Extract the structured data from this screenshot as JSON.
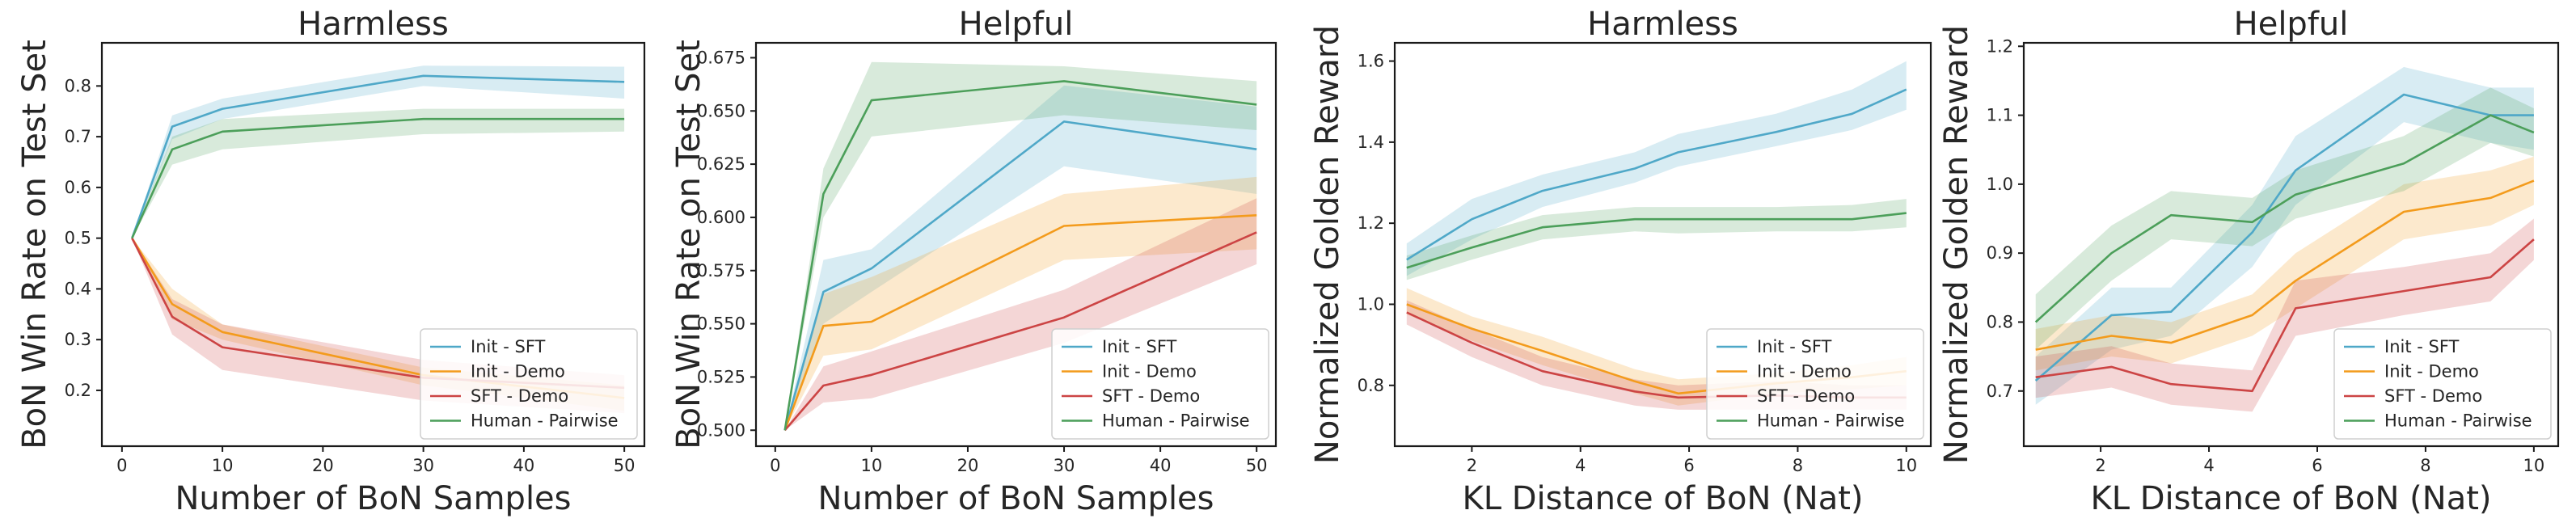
{
  "chart_data": [
    {
      "type": "line",
      "title": "Harmless",
      "xlabel": "Number of BoN Samples",
      "ylabel": "BoN Win Rate on Test Set",
      "xlim": [
        -2,
        52
      ],
      "ylim": [
        0.09,
        0.885
      ],
      "xticks": [
        0,
        10,
        20,
        30,
        40,
        50
      ],
      "yticks": [
        0.2,
        0.3,
        0.4,
        0.5,
        0.6,
        0.7,
        0.8
      ],
      "series": [
        {
          "name": "Init - SFT",
          "color": "#4fa8c8",
          "x": [
            1,
            5,
            10,
            30,
            50
          ],
          "y": [
            0.5,
            0.72,
            0.755,
            0.82,
            0.808
          ],
          "lower": [
            0.5,
            0.695,
            0.735,
            0.8,
            0.775
          ],
          "upper": [
            0.5,
            0.742,
            0.775,
            0.84,
            0.838
          ]
        },
        {
          "name": "Init - Demo",
          "color": "#f39b1c",
          "x": [
            1,
            5,
            10,
            30,
            50
          ],
          "y": [
            0.5,
            0.37,
            0.315,
            0.23,
            0.185
          ],
          "lower": [
            0.5,
            0.34,
            0.3,
            0.21,
            0.16
          ],
          "upper": [
            0.5,
            0.4,
            0.33,
            0.245,
            0.21
          ]
        },
        {
          "name": "SFT - Demo",
          "color": "#cc4444",
          "x": [
            1,
            5,
            10,
            30,
            50
          ],
          "y": [
            0.5,
            0.345,
            0.285,
            0.225,
            0.205
          ],
          "lower": [
            0.5,
            0.31,
            0.24,
            0.18,
            0.155
          ],
          "upper": [
            0.5,
            0.38,
            0.33,
            0.26,
            0.23
          ]
        },
        {
          "name": "Human - Pairwise",
          "color": "#4c9f5a",
          "x": [
            1,
            5,
            10,
            30,
            50
          ],
          "y": [
            0.5,
            0.675,
            0.71,
            0.735,
            0.735
          ],
          "lower": [
            0.5,
            0.645,
            0.675,
            0.705,
            0.71
          ],
          "upper": [
            0.5,
            0.7,
            0.735,
            0.755,
            0.755
          ]
        }
      ],
      "legend": "lower-right"
    },
    {
      "type": "line",
      "title": "Helpful",
      "xlabel": "Number of BoN Samples",
      "ylabel": "BoN Win Rate on Test Set",
      "xlim": [
        -2,
        52
      ],
      "ylim": [
        0.4925,
        0.682
      ],
      "xticks": [
        0,
        10,
        20,
        30,
        40,
        50
      ],
      "yticks": [
        0.5,
        0.525,
        0.55,
        0.575,
        0.6,
        0.625,
        0.65,
        0.675
      ],
      "series": [
        {
          "name": "Init - SFT",
          "color": "#4fa8c8",
          "x": [
            1,
            5,
            10,
            30,
            50
          ],
          "y": [
            0.5,
            0.565,
            0.576,
            0.645,
            0.632
          ],
          "lower": [
            0.5,
            0.55,
            0.565,
            0.624,
            0.611
          ],
          "upper": [
            0.5,
            0.58,
            0.585,
            0.662,
            0.652
          ]
        },
        {
          "name": "Init - Demo",
          "color": "#f39b1c",
          "x": [
            1,
            5,
            10,
            30,
            50
          ],
          "y": [
            0.5,
            0.549,
            0.551,
            0.596,
            0.601
          ],
          "lower": [
            0.5,
            0.535,
            0.538,
            0.58,
            0.585
          ],
          "upper": [
            0.5,
            0.564,
            0.572,
            0.611,
            0.619
          ]
        },
        {
          "name": "SFT - Demo",
          "color": "#cc4444",
          "x": [
            1,
            5,
            10,
            30,
            50
          ],
          "y": [
            0.5,
            0.521,
            0.526,
            0.553,
            0.593
          ],
          "lower": [
            0.5,
            0.513,
            0.515,
            0.541,
            0.578
          ],
          "upper": [
            0.5,
            0.53,
            0.537,
            0.566,
            0.609
          ]
        },
        {
          "name": "Human - Pairwise",
          "color": "#4c9f5a",
          "x": [
            1,
            5,
            10,
            30,
            50
          ],
          "y": [
            0.5,
            0.611,
            0.655,
            0.664,
            0.653
          ],
          "lower": [
            0.5,
            0.6,
            0.638,
            0.648,
            0.641
          ],
          "upper": [
            0.5,
            0.623,
            0.673,
            0.671,
            0.664
          ]
        }
      ],
      "legend": "lower-right"
    },
    {
      "type": "line",
      "title": "Harmless",
      "xlabel": "KL Distance of BoN (Nat)",
      "ylabel": "Normalized Golden Reward",
      "xlim": [
        0.58,
        10.45
      ],
      "ylim": [
        0.65,
        1.645
      ],
      "xticks": [
        2,
        4,
        6,
        8,
        10
      ],
      "yticks": [
        0.8,
        1.0,
        1.2,
        1.4,
        1.6
      ],
      "series": [
        {
          "name": "Init - SFT",
          "color": "#4fa8c8",
          "x": [
            0.8,
            2.0,
            3.3,
            5.0,
            5.8,
            7.6,
            9.0,
            10.0
          ],
          "y": [
            1.11,
            1.21,
            1.28,
            1.335,
            1.375,
            1.425,
            1.47,
            1.53
          ],
          "lower": [
            1.07,
            1.16,
            1.24,
            1.3,
            1.34,
            1.39,
            1.43,
            1.48
          ],
          "upper": [
            1.15,
            1.26,
            1.32,
            1.375,
            1.42,
            1.47,
            1.53,
            1.6
          ]
        },
        {
          "name": "Init - Demo",
          "color": "#f39b1c",
          "x": [
            0.8,
            2.0,
            3.3,
            5.0,
            5.8,
            7.6,
            9.0,
            10.0
          ],
          "y": [
            1.0,
            0.94,
            0.885,
            0.81,
            0.78,
            0.805,
            0.82,
            0.835
          ],
          "lower": [
            0.975,
            0.91,
            0.85,
            0.78,
            0.75,
            0.78,
            0.79,
            0.8
          ],
          "upper": [
            1.04,
            0.97,
            0.92,
            0.84,
            0.815,
            0.83,
            0.85,
            0.87
          ]
        },
        {
          "name": "SFT - Demo",
          "color": "#cc4444",
          "x": [
            0.8,
            2.0,
            3.3,
            5.0,
            5.8,
            7.6,
            9.0,
            10.0
          ],
          "y": [
            0.98,
            0.905,
            0.835,
            0.785,
            0.77,
            0.775,
            0.77,
            0.77
          ],
          "lower": [
            0.95,
            0.87,
            0.8,
            0.75,
            0.74,
            0.74,
            0.74,
            0.74
          ],
          "upper": [
            1.01,
            0.94,
            0.87,
            0.815,
            0.8,
            0.81,
            0.8,
            0.8
          ]
        },
        {
          "name": "Human - Pairwise",
          "color": "#4c9f5a",
          "x": [
            0.8,
            2.0,
            3.3,
            5.0,
            5.8,
            7.6,
            9.0,
            10.0
          ],
          "y": [
            1.09,
            1.14,
            1.19,
            1.21,
            1.21,
            1.21,
            1.21,
            1.225
          ],
          "lower": [
            1.06,
            1.11,
            1.16,
            1.18,
            1.175,
            1.18,
            1.18,
            1.19
          ],
          "upper": [
            1.12,
            1.17,
            1.22,
            1.24,
            1.24,
            1.24,
            1.245,
            1.26
          ]
        }
      ],
      "legend": "lower-right"
    },
    {
      "type": "line",
      "title": "Helpful",
      "xlabel": "KL Distance of BoN (Nat)",
      "ylabel": "Normalized Golden Reward",
      "xlim": [
        0.58,
        10.45
      ],
      "ylim": [
        0.62,
        1.205
      ],
      "xticks": [
        2,
        4,
        6,
        8,
        10
      ],
      "yticks": [
        0.7,
        0.8,
        0.9,
        1.0,
        1.1,
        1.2
      ],
      "series": [
        {
          "name": "Init - SFT",
          "color": "#4fa8c8",
          "x": [
            0.8,
            2.2,
            3.3,
            4.8,
            5.6,
            7.6,
            9.2,
            10.0
          ],
          "y": [
            0.715,
            0.81,
            0.815,
            0.93,
            1.02,
            1.13,
            1.1,
            1.1
          ],
          "lower": [
            0.68,
            0.76,
            0.78,
            0.88,
            0.97,
            1.09,
            1.06,
            1.05
          ],
          "upper": [
            0.75,
            0.85,
            0.85,
            0.97,
            1.07,
            1.17,
            1.14,
            1.14
          ]
        },
        {
          "name": "Init - Demo",
          "color": "#f39b1c",
          "x": [
            0.8,
            2.2,
            3.3,
            4.8,
            5.6,
            7.6,
            9.2,
            10.0
          ],
          "y": [
            0.76,
            0.78,
            0.77,
            0.81,
            0.86,
            0.96,
            0.98,
            1.005
          ],
          "lower": [
            0.73,
            0.75,
            0.74,
            0.78,
            0.82,
            0.92,
            0.94,
            0.97
          ],
          "upper": [
            0.79,
            0.81,
            0.8,
            0.84,
            0.9,
            1.0,
            1.02,
            1.04
          ]
        },
        {
          "name": "SFT - Demo",
          "color": "#cc4444",
          "x": [
            0.8,
            2.2,
            3.3,
            4.8,
            5.6,
            7.6,
            9.2,
            10.0
          ],
          "y": [
            0.72,
            0.735,
            0.71,
            0.7,
            0.82,
            0.845,
            0.865,
            0.92
          ],
          "lower": [
            0.69,
            0.705,
            0.68,
            0.67,
            0.78,
            0.81,
            0.83,
            0.89
          ],
          "upper": [
            0.75,
            0.765,
            0.74,
            0.73,
            0.86,
            0.88,
            0.9,
            0.95
          ]
        },
        {
          "name": "Human - Pairwise",
          "color": "#4c9f5a",
          "x": [
            0.8,
            2.2,
            3.3,
            4.8,
            5.6,
            7.6,
            9.2,
            10.0
          ],
          "y": [
            0.8,
            0.9,
            0.955,
            0.945,
            0.985,
            1.03,
            1.1,
            1.075
          ],
          "lower": [
            0.76,
            0.86,
            0.92,
            0.91,
            0.95,
            0.99,
            1.06,
            1.04
          ],
          "upper": [
            0.84,
            0.94,
            0.99,
            0.98,
            1.02,
            1.07,
            1.14,
            1.11
          ]
        }
      ],
      "legend": "lower-right"
    }
  ]
}
